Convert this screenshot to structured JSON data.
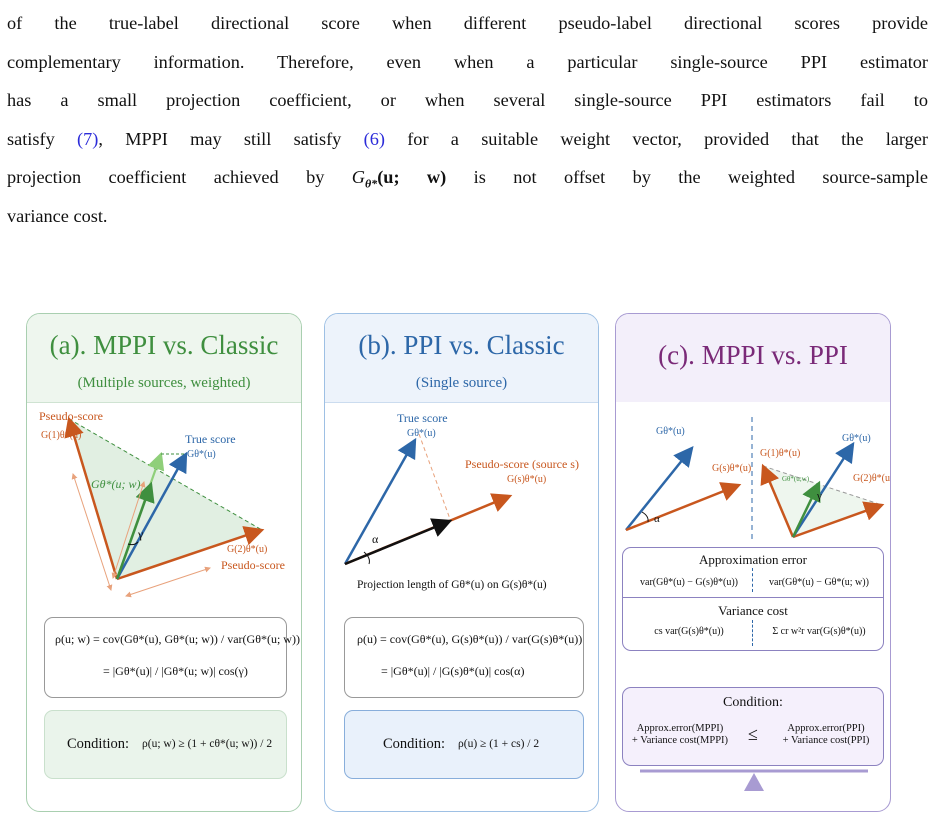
{
  "paragraph": {
    "line1": "of the true-label directional score when different pseudo-label directional scores provide",
    "line2": "complementary information. Therefore, even when a particular single-source PPI estimator",
    "line3": "has a small projection coefficient, or when several single-source PPI estimators fail to",
    "line4_a": "satisfy ",
    "line4_ref1": "(7)",
    "line4_b": ", MPPI may still satisfy ",
    "line4_ref2": "(6)",
    "line4_c": " for a suitable weight vector, provided that the larger",
    "line5_a": "projection coefficient achieved by ",
    "line5_math": "G",
    "line5_sub": "θ*",
    "line5_args": "(u; w)",
    "line5_b": " is not offset by the weighted source-sample",
    "line6": "variance cost."
  },
  "panel_a": {
    "title": "(a). MPPI vs. Classic",
    "subtitle": "(Multiple sources, weighted)",
    "label_pseudo_top": "Pseudo-score",
    "label_g1": "G(1)θ*(u)",
    "label_true": "True score",
    "label_gtrue": "Gθ*(u)",
    "label_gw": "Gθ*(u; w)",
    "label_gamma": "γ",
    "label_g2": "G(2)θ*(u)",
    "label_pseudo_bottom": "Pseudo-score",
    "formula_line1": "ρ(u; w) = cov(Gθ*(u), Gθ*(u; w)) / var(Gθ*(u; w))",
    "formula_line2": "= |Gθ*(u)| / |Gθ*(u; w)| cos(γ)",
    "condition_label": "Condition:",
    "condition_expr": "ρ(u; w) ≥ (1 + cθ*(u; w)) / 2"
  },
  "panel_b": {
    "title": "(b). PPI vs. Classic",
    "subtitle": "(Single source)",
    "label_true": "True score",
    "label_gtrue": "Gθ*(u)",
    "label_pseudo": "Pseudo-score (source s)",
    "label_gs": "G(s)θ*(u)",
    "label_alpha": "α",
    "projection_caption": "Projection length of Gθ*(u) on G(s)θ*(u)",
    "formula_line1": "ρ(u) = cov(Gθ*(u), G(s)θ*(u)) / var(G(s)θ*(u))",
    "formula_line2": "= |Gθ*(u)| / |G(s)θ*(u)| cos(α)",
    "condition_label": "Condition:",
    "condition_expr": "ρ(u) ≥ (1 + cs) / 2"
  },
  "panel_c": {
    "title": "(c). MPPI vs. PPI",
    "left_gtrue": "Gθ*(u)",
    "left_gs": "G(s)θ*(u)",
    "left_alpha": "α",
    "right_gtrue": "Gθ*(u)",
    "right_g1": "G(1)θ*(u)",
    "right_gw": "Gθ*(u;w)",
    "right_g2": "G(2)θ*(u)",
    "right_gamma": "γ",
    "approx_title": "Approximation error",
    "approx_left": "var(Gθ*(u) − G(s)θ*(u))",
    "approx_right": "var(Gθ*(u) − Gθ*(u; w))",
    "variance_title": "Variance cost",
    "variance_left": "cs var(G(s)θ*(u))",
    "variance_right": "Σ cr w²r var(G(s)θ*(u))",
    "condition_title": "Condition:",
    "cond_left_1": "Approx.error(MPPI)",
    "cond_left_2": "+ Variance cost(MPPI)",
    "cond_leq": "≤",
    "cond_right_1": "Approx.error(PPI)",
    "cond_right_2": "+ Variance cost(PPI)"
  },
  "colors": {
    "orange": "#c8571e",
    "blue": "#2d67a8",
    "green": "#3f8f3f",
    "light_green": "#8fcf7a",
    "purple": "#7a2a78",
    "shade_green": "#e1efe2"
  }
}
